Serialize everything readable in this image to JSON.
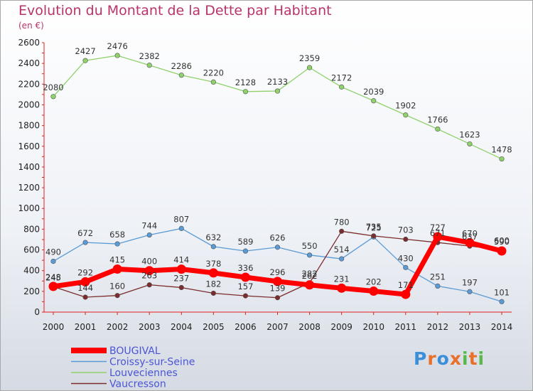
{
  "chart_data": {
    "type": "line",
    "title": "Evolution du Montant de la Dette par Habitant",
    "subtitle": "(en €)",
    "x": [
      "2000",
      "2001",
      "2002",
      "2003",
      "2004",
      "2005",
      "2006",
      "2007",
      "2008",
      "2009",
      "2010",
      "2011",
      "2012",
      "2013",
      "2014"
    ],
    "ylim": [
      0,
      2600
    ],
    "yticks": [
      0,
      200,
      400,
      600,
      800,
      1000,
      1200,
      1400,
      1600,
      1800,
      2000,
      2200,
      2400,
      2600
    ],
    "grid": false,
    "legend_position": "bottom-left",
    "series": [
      {
        "name": "BOUGIVAL",
        "color": "#ff0000",
        "values": [
          248,
          292,
          415,
          400,
          414,
          378,
          336,
          296,
          262,
          231,
          202,
          171,
          727,
          670,
          590
        ]
      },
      {
        "name": "Croissy-sur-Seine",
        "color": "#5a9bd5",
        "values": [
          490,
          672,
          658,
          744,
          807,
          632,
          589,
          626,
          550,
          514,
          725,
          430,
          251,
          197,
          101
        ]
      },
      {
        "name": "Louveciennes",
        "color": "#8fd16b",
        "values": [
          2080,
          2427,
          2476,
          2382,
          2286,
          2220,
          2128,
          2133,
          2359,
          2172,
          2039,
          1902,
          1766,
          1623,
          1478
        ]
      },
      {
        "name": "Vaucresson",
        "color": "#7b2d2d",
        "values": [
          245,
          144,
          160,
          263,
          237,
          182,
          157,
          139,
          282,
          780,
          735,
          703,
          671,
          637,
          600
        ]
      }
    ]
  },
  "logo": {
    "text": "Proxiti",
    "letters": [
      "P",
      "r",
      "o",
      "x",
      "i",
      "t",
      "i"
    ],
    "colors": [
      "#3a8fd8",
      "#e8702a",
      "#3a8fd8",
      "#e8702a",
      "#58b848",
      "#e8702a",
      "#58b848"
    ]
  }
}
